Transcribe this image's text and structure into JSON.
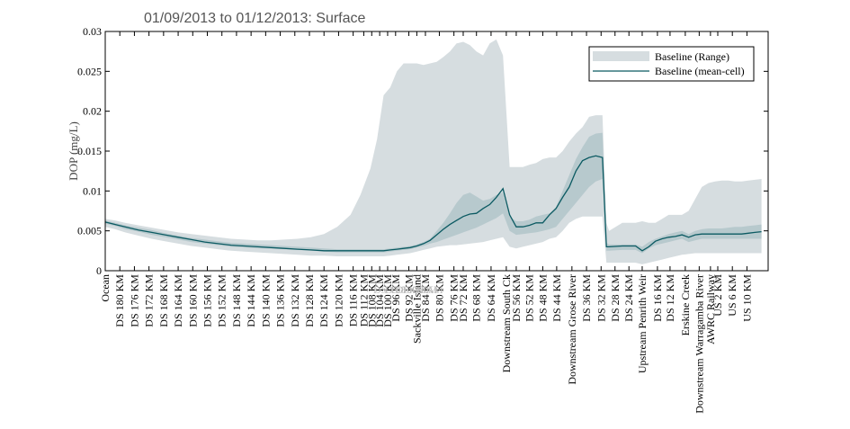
{
  "chart_data": {
    "type": "area",
    "title": "01/09/2013 to 01/12/2013: Surface",
    "xlabel": "",
    "ylabel": "DOP (mg/L)",
    "ylim": [
      0,
      0.03
    ],
    "yticks": [
      0,
      0.005,
      0.01,
      0.015,
      0.02,
      0.025,
      0.03
    ],
    "ytick_labels": [
      "0",
      "0.005",
      "0.01",
      "0.015",
      "0.02",
      "0.025",
      "0.03"
    ],
    "xlim": [
      0,
      100
    ],
    "grid": false,
    "legend_position": "top-right",
    "category_ticks": [
      {
        "label": "Ocean",
        "x": 0
      },
      {
        "label": "DS 180 KM",
        "x": 2.2
      },
      {
        "label": "DS 176 KM",
        "x": 4.4
      },
      {
        "label": "DS 172 KM",
        "x": 6.6
      },
      {
        "label": "DS 168 KM",
        "x": 8.8
      },
      {
        "label": "DS 164 KM",
        "x": 11.0
      },
      {
        "label": "DS 160 KM",
        "x": 13.2
      },
      {
        "label": "DS 156 KM",
        "x": 15.4
      },
      {
        "label": "DS 152 KM",
        "x": 17.6
      },
      {
        "label": "DS 148 KM",
        "x": 19.8
      },
      {
        "label": "DS 144 KM",
        "x": 22.0
      },
      {
        "label": "DS 140 KM",
        "x": 24.2
      },
      {
        "label": "DS 136 KM",
        "x": 26.4
      },
      {
        "label": "DS 132 KM",
        "x": 28.6
      },
      {
        "label": "DS 128 KM",
        "x": 30.8
      },
      {
        "label": "DS 124 KM",
        "x": 33.0
      },
      {
        "label": "DS 120 KM",
        "x": 35.2
      },
      {
        "label": "DS 116 KM",
        "x": 37.4
      },
      {
        "label": "DS 112 KM",
        "x": 39.0
      },
      {
        "label": "DS 108 KM",
        "x": 40.2
      },
      {
        "label": "DS 104 KM",
        "x": 41.4
      },
      {
        "label": "DS 100 KM",
        "x": 42.6
      },
      {
        "label": "DS 96 KM",
        "x": 43.8
      },
      {
        "label": "DS 92 KM",
        "x": 45.8
      },
      {
        "label": "Sackville Island",
        "x": 47.0
      },
      {
        "label": "DS 84 KM",
        "x": 48.3
      },
      {
        "label": "DS 80 KM",
        "x": 50.4
      },
      {
        "label": "DS 76 KM",
        "x": 52.6
      },
      {
        "label": "DS 72 KM",
        "x": 54.0
      },
      {
        "label": "DS 68 KM",
        "x": 56.0
      },
      {
        "label": "DS 64 KM",
        "x": 58.2
      },
      {
        "label": "Downstream South Ck",
        "x": 60.5
      },
      {
        "label": "DS 56 KM",
        "x": 62.0
      },
      {
        "label": "DS 52 KM",
        "x": 64.0
      },
      {
        "label": "DS 48 KM",
        "x": 66.0
      },
      {
        "label": "DS 44 KM",
        "x": 68.1
      },
      {
        "label": "Downstream Grose River",
        "x": 70.4
      },
      {
        "label": "DS 36 KM",
        "x": 72.6
      },
      {
        "label": "DS 32 KM",
        "x": 74.8
      },
      {
        "label": "DS 28 KM",
        "x": 76.9
      },
      {
        "label": "DS 24 KM",
        "x": 79.0
      },
      {
        "label": "Upstream Penrith Weir",
        "x": 81.0
      },
      {
        "label": "DS 16 KM",
        "x": 83.3
      },
      {
        "label": "DS 12 KM",
        "x": 85.2
      },
      {
        "label": "Erskine Creek",
        "x": 87.5
      },
      {
        "label": "Downstream Warragamba River",
        "x": 89.6
      },
      {
        "label": "AWRC Railway",
        "x": 91.3
      },
      {
        "label": "US 2 KM",
        "x": 92.4
      },
      {
        "label": "US 6 KM",
        "x": 94.6
      },
      {
        "label": "US 10 KM",
        "x": 96.8
      }
    ],
    "x": [
      0,
      1.5,
      3,
      5,
      7,
      9,
      11,
      13,
      15,
      17,
      19,
      21,
      23,
      25,
      27,
      29,
      31,
      33,
      35,
      37,
      38.5,
      40,
      41,
      42,
      43,
      44,
      45,
      46,
      47,
      48,
      49,
      50,
      51,
      52,
      53,
      54,
      55,
      56,
      57,
      58,
      59,
      60,
      61,
      62,
      63,
      64,
      65,
      66,
      67,
      68,
      69,
      70,
      71,
      72,
      73,
      74,
      75,
      75.6,
      76,
      78,
      80,
      81,
      82,
      83,
      84,
      85,
      86,
      87,
      88,
      89,
      90,
      91,
      92,
      93,
      94,
      95,
      96,
      97,
      98,
      99
    ],
    "series": [
      {
        "name": "Baseline (Range)",
        "kind": "band",
        "lower": [
          0.0055,
          0.0052,
          0.0048,
          0.0044,
          0.004,
          0.0037,
          0.0034,
          0.0031,
          0.0029,
          0.0027,
          0.0025,
          0.0024,
          0.0023,
          0.0022,
          0.0021,
          0.002,
          0.0019,
          0.0019,
          0.0018,
          0.0018,
          0.0018,
          0.0018,
          0.0018,
          0.0018,
          0.0019,
          0.002,
          0.0021,
          0.0022,
          0.0024,
          0.0026,
          0.0028,
          0.003,
          0.0031,
          0.0032,
          0.0032,
          0.0033,
          0.0034,
          0.0035,
          0.0036,
          0.0038,
          0.004,
          0.0042,
          0.003,
          0.0028,
          0.003,
          0.0032,
          0.0034,
          0.0036,
          0.004,
          0.0042,
          0.005,
          0.006,
          0.0065,
          0.0068,
          0.0068,
          0.0068,
          0.0068,
          0.001,
          0.001,
          0.001,
          0.001,
          0.0008,
          0.001,
          0.0012,
          0.0014,
          0.0016,
          0.0018,
          0.002,
          0.0021,
          0.0022,
          0.0022,
          0.0022,
          0.0022,
          0.0022,
          0.0022,
          0.0022,
          0.0022,
          0.0022,
          0.0022,
          0.0022
        ],
        "upper": [
          0.0065,
          0.0063,
          0.006,
          0.0057,
          0.0054,
          0.0051,
          0.0048,
          0.0046,
          0.0044,
          0.0042,
          0.004,
          0.0039,
          0.0038,
          0.0038,
          0.0039,
          0.004,
          0.0042,
          0.0046,
          0.0055,
          0.007,
          0.0095,
          0.0128,
          0.0165,
          0.022,
          0.023,
          0.025,
          0.026,
          0.026,
          0.026,
          0.0258,
          0.026,
          0.0262,
          0.0268,
          0.0275,
          0.0285,
          0.0287,
          0.0283,
          0.0275,
          0.027,
          0.0285,
          0.029,
          0.027,
          0.013,
          0.013,
          0.013,
          0.0133,
          0.0135,
          0.014,
          0.0142,
          0.0142,
          0.015,
          0.0162,
          0.0172,
          0.018,
          0.0193,
          0.0195,
          0.0195,
          0.006,
          0.005,
          0.006,
          0.006,
          0.0062,
          0.006,
          0.006,
          0.0065,
          0.007,
          0.007,
          0.007,
          0.0075,
          0.009,
          0.0105,
          0.011,
          0.0112,
          0.0113,
          0.0113,
          0.0112,
          0.0112,
          0.0113,
          0.0114,
          0.0115
        ]
      },
      {
        "name": "",
        "kind": "inner-band",
        "lower": [
          0.0059,
          0.0056,
          0.0052,
          0.0049,
          0.0045,
          0.0042,
          0.0039,
          0.0036,
          0.0034,
          0.0032,
          0.003,
          0.0029,
          0.0028,
          0.0028,
          0.0027,
          0.0026,
          0.0025,
          0.0024,
          0.0023,
          0.0023,
          0.0023,
          0.0023,
          0.0023,
          0.0023,
          0.0024,
          0.0025,
          0.0026,
          0.0027,
          0.0029,
          0.0031,
          0.0034,
          0.0036,
          0.0039,
          0.0042,
          0.0045,
          0.0048,
          0.0051,
          0.0054,
          0.0058,
          0.0062,
          0.0066,
          0.0072,
          0.005,
          0.0045,
          0.0046,
          0.0047,
          0.0048,
          0.005,
          0.0052,
          0.0055,
          0.0065,
          0.0075,
          0.0085,
          0.0095,
          0.0105,
          0.0112,
          0.0115,
          0.0025,
          0.0025,
          0.0026,
          0.0026,
          0.0022,
          0.0028,
          0.0032,
          0.0034,
          0.0036,
          0.0038,
          0.004,
          0.0036,
          0.0038,
          0.004,
          0.004,
          0.004,
          0.004,
          0.004,
          0.004,
          0.004,
          0.004,
          0.004,
          0.004
        ],
        "upper": [
          0.0063,
          0.006,
          0.0057,
          0.0054,
          0.0051,
          0.0047,
          0.0044,
          0.0041,
          0.0039,
          0.0037,
          0.0035,
          0.0034,
          0.0033,
          0.0032,
          0.0031,
          0.003,
          0.0029,
          0.0028,
          0.0027,
          0.0027,
          0.0027,
          0.0027,
          0.0027,
          0.0027,
          0.0028,
          0.0029,
          0.003,
          0.0031,
          0.0033,
          0.0036,
          0.004,
          0.005,
          0.006,
          0.0072,
          0.0085,
          0.0095,
          0.0098,
          0.0093,
          0.0088,
          0.009,
          0.0095,
          0.0098,
          0.0068,
          0.0062,
          0.0062,
          0.0064,
          0.0068,
          0.007,
          0.0072,
          0.008,
          0.01,
          0.012,
          0.014,
          0.0155,
          0.0168,
          0.0172,
          0.0173,
          0.0035,
          0.0033,
          0.0033,
          0.0033,
          0.003,
          0.0036,
          0.004,
          0.0043,
          0.0046,
          0.0048,
          0.005,
          0.0046,
          0.005,
          0.0052,
          0.0053,
          0.0053,
          0.0053,
          0.0054,
          0.0055,
          0.0055,
          0.0056,
          0.0057,
          0.0058
        ]
      },
      {
        "name": "Baseline (mean-cell)",
        "kind": "line",
        "values": [
          0.0061,
          0.0058,
          0.0055,
          0.0051,
          0.0048,
          0.0045,
          0.0042,
          0.0039,
          0.0036,
          0.0034,
          0.0032,
          0.0031,
          0.003,
          0.0029,
          0.0028,
          0.0027,
          0.0026,
          0.0025,
          0.0025,
          0.0025,
          0.0025,
          0.0025,
          0.0025,
          0.0025,
          0.0026,
          0.0027,
          0.0028,
          0.0029,
          0.0031,
          0.0034,
          0.0038,
          0.0045,
          0.0052,
          0.0058,
          0.0063,
          0.0068,
          0.0071,
          0.0072,
          0.0078,
          0.0083,
          0.0092,
          0.0103,
          0.007,
          0.0055,
          0.0055,
          0.0057,
          0.006,
          0.006,
          0.007,
          0.0078,
          0.0092,
          0.0105,
          0.0125,
          0.0138,
          0.0142,
          0.0144,
          0.0142,
          0.003,
          0.003,
          0.0031,
          0.0031,
          0.0025,
          0.003,
          0.0037,
          0.004,
          0.0042,
          0.0043,
          0.0045,
          0.0042,
          0.0045,
          0.0046,
          0.0046,
          0.0046,
          0.0046,
          0.0046,
          0.0046,
          0.0046,
          0.0047,
          0.0048,
          0.0049
        ]
      }
    ],
    "colors": {
      "range_fill": "#d6dde0",
      "inner_fill": "#b7c9cd",
      "line": "#0b5a62"
    },
    "background_labels": [
      "DS 108 KM",
      "DS 100 KM",
      "DS 96 KM"
    ]
  }
}
